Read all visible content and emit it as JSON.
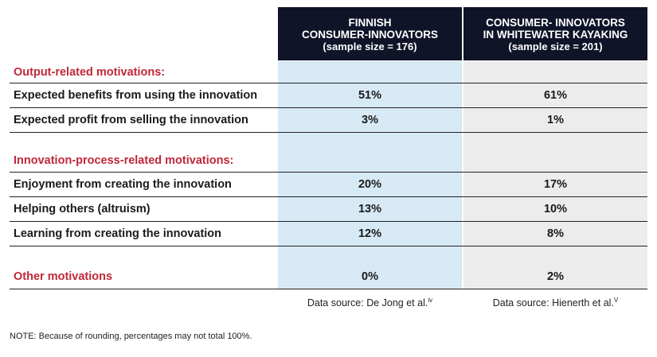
{
  "columns": [
    {
      "line1": "FINNISH",
      "line2": "CONSUMER-INNOVATORS",
      "line3": "(sample size = 176)"
    },
    {
      "line1": "CONSUMER- INNOVATORS",
      "line2": "IN WHITEWATER KAYAKING",
      "line3": "(sample size = 201)"
    }
  ],
  "sections": {
    "output": {
      "title": "Output-related motivations:",
      "rows": [
        {
          "label": "Expected benefits from using the innovation",
          "v1": "51%",
          "v2": "61%"
        },
        {
          "label": "Expected profit from selling the innovation",
          "v1": "3%",
          "v2": "1%"
        }
      ]
    },
    "process": {
      "title": "Innovation-process-related motivations:",
      "rows": [
        {
          "label": "Enjoyment from creating the innovation",
          "v1": "20%",
          "v2": "17%"
        },
        {
          "label": "Helping others (altruism)",
          "v1": "13%",
          "v2": "10%"
        },
        {
          "label": "Learning from creating the innovation",
          "v1": "12%",
          "v2": "8%"
        }
      ]
    },
    "other": {
      "label": "Other motivations",
      "v1": "0%",
      "v2": "2%"
    }
  },
  "sources": [
    {
      "text": "Data source: De Jong et al.",
      "sup": "iv"
    },
    {
      "text": "Data source: Hienerth et al.",
      "sup": "V"
    }
  ],
  "note": "NOTE: Because of rounding, percentages may not total 100%.",
  "colors": {
    "header_bg": "#101428",
    "section_title": "#c0273a",
    "col1_bg": "#d7e9f5",
    "col2_bg": "#ececec"
  }
}
